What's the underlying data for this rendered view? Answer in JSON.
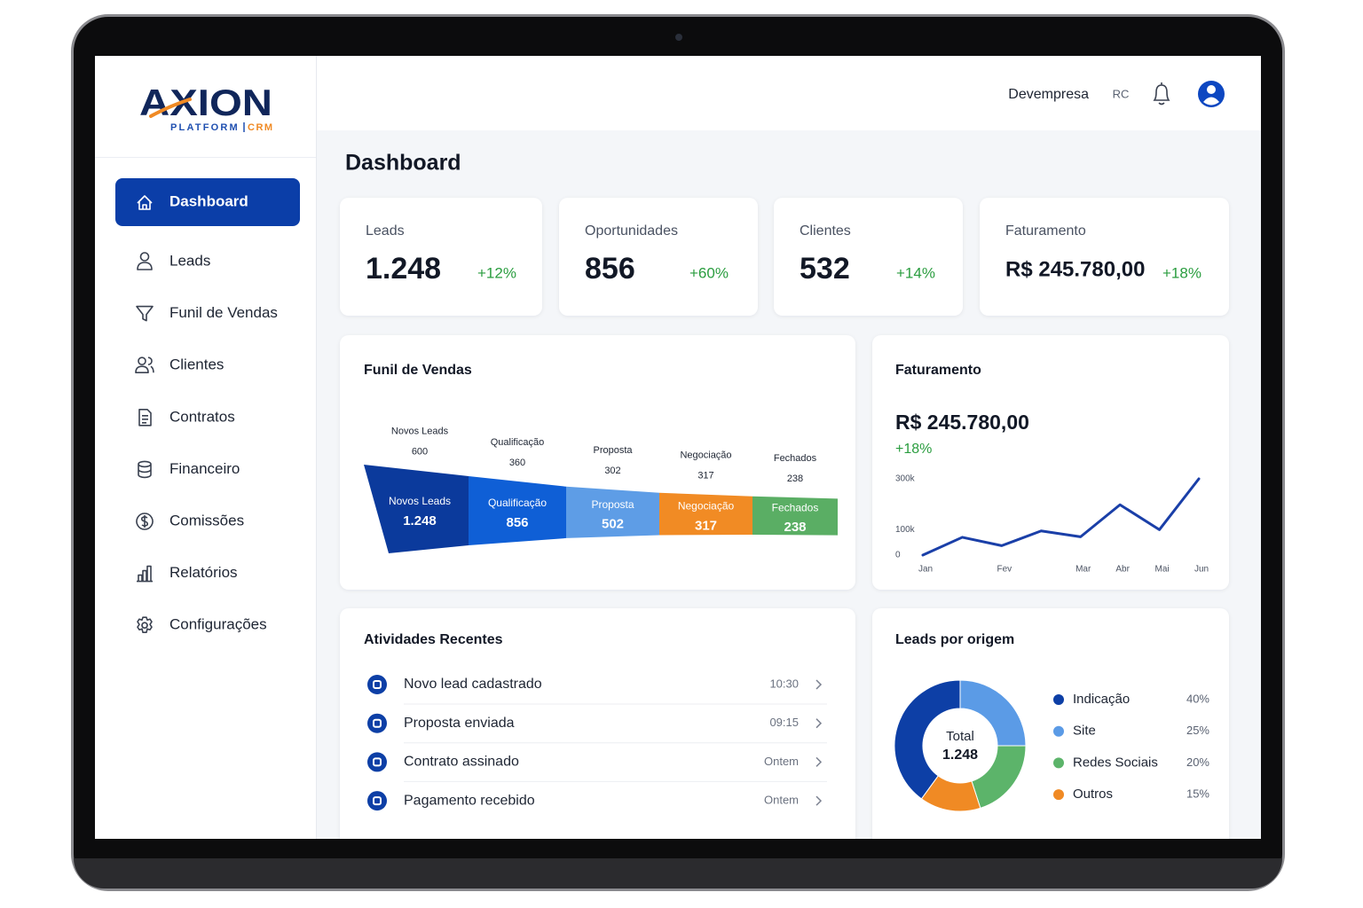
{
  "logo": {
    "brand": "AXION",
    "tagline_left": "PLATFORM",
    "tagline_right": "CRM"
  },
  "nav": [
    "Dashboard",
    "Leads",
    "Funil de Vendas",
    "Clientes",
    "Contratos",
    "Financeiro",
    "Comissões",
    "Relatórios",
    "Configurações"
  ],
  "header": {
    "company": "Devempresa",
    "initials": "RC"
  },
  "page_title": "Dashboard",
  "kpis": [
    {
      "label": "Leads",
      "value": "1.248",
      "change": "+12%"
    },
    {
      "label": "Oportunidades",
      "value": "856",
      "change": "+60%"
    },
    {
      "label": "Clientes",
      "value": "532",
      "change": "+14%"
    },
    {
      "label": "Faturamento",
      "value": "R$ 245.780,00",
      "change": "+18%"
    }
  ],
  "activities": {
    "title": "Atividades Recentes",
    "items": [
      {
        "text": "Novo lead cadastrado",
        "time": "10:30"
      },
      {
        "text": "Proposta enviada",
        "time": "09:15"
      },
      {
        "text": "Contrato assinado",
        "time": "Ontem"
      },
      {
        "text": "Pagamento recebido",
        "time": "Ontem"
      }
    ]
  },
  "chart_data": [
    {
      "type": "funnel",
      "title": "Funil de Vendas",
      "categories": [
        "Novos Leads",
        "Qualificação",
        "Proposta",
        "Negociação",
        "Fechados"
      ],
      "values": [
        1248,
        856,
        502,
        317,
        238
      ],
      "value_labels": [
        "1.248",
        "856",
        "502",
        "317",
        "238"
      ],
      "stage_totals": [
        600,
        360,
        302,
        317,
        238
      ],
      "colors": [
        "#0b3a9c",
        "#0f5fd6",
        "#5e9de6",
        "#f18b24",
        "#5aae64"
      ]
    },
    {
      "type": "line",
      "title": "Faturamento",
      "total": "R$ 245.780,00",
      "change": "+18%",
      "categories": [
        "Jan",
        null,
        "Fev",
        null,
        "Mar",
        "Abr",
        "Mai",
        "Jun"
      ],
      "values": [
        0,
        70000,
        37000,
        95000,
        72000,
        198000,
        100000,
        300000
      ],
      "color": "#1a3fa8",
      "ylim": [
        0,
        300000
      ],
      "yticks": [
        0,
        {
          "value": 100000,
          "label": "100k"
        },
        {
          "value": 300000,
          "label": "300k"
        }
      ]
    },
    {
      "type": "donut",
      "title": "Leads por origem",
      "center_label": "Total",
      "center_value": "1.248",
      "categories": [
        "Indicação",
        "Site",
        "Redes Sociais",
        "Outros"
      ],
      "values": [
        40,
        25,
        20,
        15
      ],
      "value_labels": [
        "40%",
        "25%",
        "20%",
        "15%"
      ],
      "colors": [
        "#0d3fa6",
        "#5b9be6",
        "#5cb46a",
        "#f08a24"
      ]
    }
  ]
}
